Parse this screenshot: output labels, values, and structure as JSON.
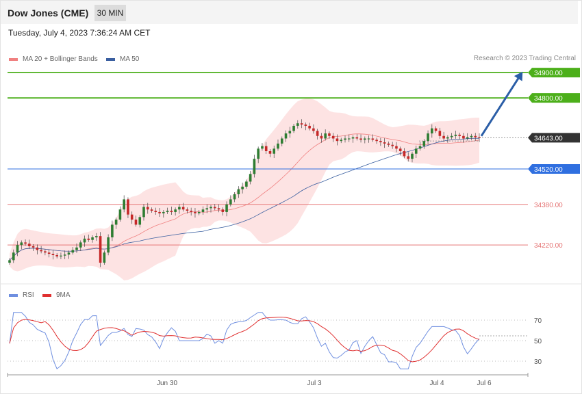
{
  "header": {
    "title": "Dow Jones (CME)",
    "timeframe": "30 MIN"
  },
  "date_line": "Tuesday, July 4, 2023 7:36:24 AM CET",
  "legend": {
    "ma20": "MA 20 + Bollinger Bands",
    "ma50": "MA 50",
    "rsi": "RSI",
    "rsi_ma": "9MA"
  },
  "credit": "Research © 2023 Trading Central",
  "colors": {
    "up": "#2e7d32",
    "down": "#c62828",
    "resistance": "#4caf1a",
    "support_blue": "#2f6fe0",
    "support_red": "#e57373",
    "ma20": "#f08080",
    "band_fill": "#fde3e3",
    "ma50": "#3a5fa0",
    "rsi": "#6f8fe0",
    "rsi_ma": "#e03030",
    "target_arrow": "#2b5ea7"
  },
  "chart_data": {
    "type": "candlestick",
    "price_axis_range": [
      34080,
      34930
    ],
    "levels": [
      {
        "label": "34900.00",
        "value": 34900,
        "kind": "resistance"
      },
      {
        "label": "34800.00",
        "value": 34800,
        "kind": "resistance"
      },
      {
        "label": "34643.00",
        "value": 34643,
        "kind": "last_price"
      },
      {
        "label": "34520.00",
        "value": 34520,
        "kind": "support_pivot"
      },
      {
        "label": "34380.00",
        "value": 34380,
        "kind": "support"
      },
      {
        "label": "34220.00",
        "value": 34220,
        "kind": "support"
      }
    ],
    "close_path": [
      34160,
      34190,
      34220,
      34230,
      34225,
      34215,
      34210,
      34200,
      34195,
      34190,
      34185,
      34180,
      34175,
      34178,
      34182,
      34190,
      34200,
      34210,
      34230,
      34245,
      34240,
      34250,
      34255,
      34150,
      34190,
      34250,
      34300,
      34320,
      34360,
      34400,
      34340,
      34320,
      34300,
      34330,
      34370,
      34360,
      34355,
      34350,
      34345,
      34350,
      34355,
      34350,
      34360,
      34370,
      34360,
      34355,
      34350,
      34345,
      34350,
      34360,
      34365,
      34370,
      34365,
      34360,
      34350,
      34380,
      34400,
      34420,
      34440,
      34450,
      34470,
      34500,
      34560,
      34600,
      34610,
      34590,
      34580,
      34600,
      34620,
      34640,
      34660,
      34670,
      34690,
      34700,
      34695,
      34690,
      34680,
      34670,
      34650,
      34640,
      34660,
      34650,
      34640,
      34630,
      34635,
      34640,
      34640,
      34645,
      34640,
      34635,
      34640,
      34640,
      34635,
      34630,
      34625,
      34620,
      34615,
      34610,
      34600,
      34590,
      34570,
      34560,
      34580,
      34600,
      34610,
      34630,
      34660,
      34680,
      34670,
      34650,
      34640,
      34645,
      34650,
      34655,
      34650,
      34640,
      34645,
      34650,
      34645,
      34643
    ],
    "rsi_scale_labels": [
      "70",
      "50",
      "30"
    ],
    "x_labels": [
      "Jun 30",
      "Jul 3",
      "Jul 4",
      "Jul 6"
    ],
    "target_arrow": {
      "from": 34650,
      "to": 34890
    }
  }
}
